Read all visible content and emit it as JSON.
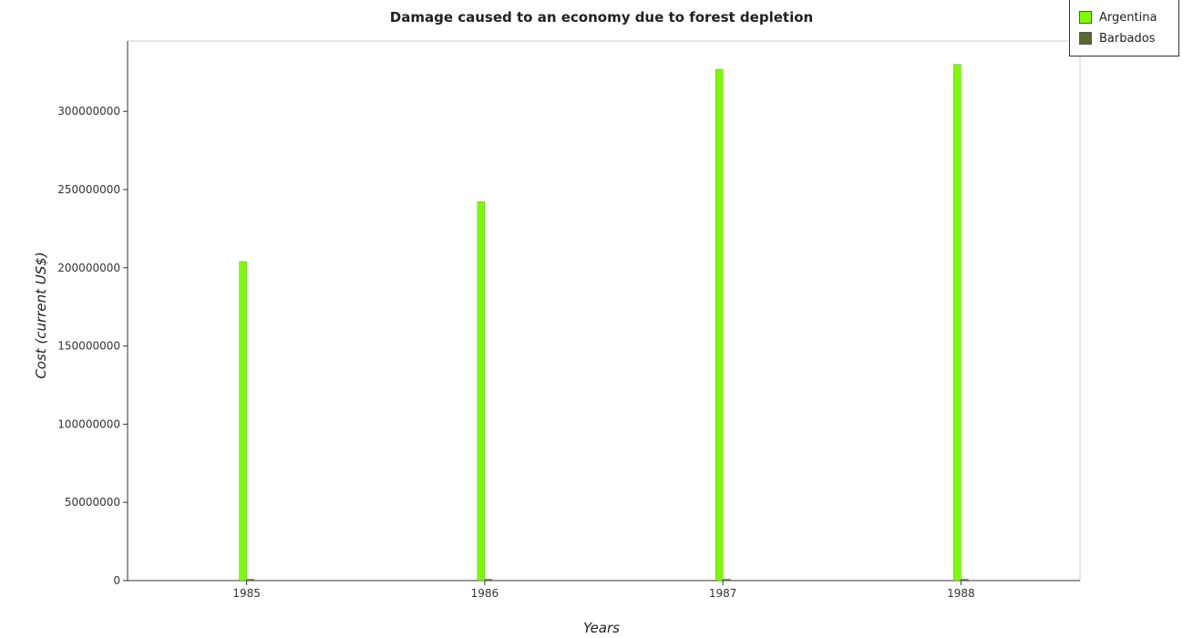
{
  "chart_data": {
    "type": "bar",
    "title": "Damage caused to an economy due to forest depletion",
    "xlabel": "Years",
    "ylabel": "Cost (current US$)",
    "categories": [
      "1985",
      "1986",
      "1987",
      "1988"
    ],
    "ylim": [
      0,
      345000000
    ],
    "yticks": [
      0,
      50000000,
      100000000,
      150000000,
      200000000,
      250000000,
      300000000
    ],
    "ytick_labels": [
      "0",
      "50000000",
      "100000000",
      "150000000",
      "200000000",
      "250000000",
      "300000000"
    ],
    "grid": false,
    "legend_position": "top-right",
    "series": [
      {
        "name": "Argentina",
        "color": "#7cfc00",
        "values": [
          204000000,
          242200000,
          326700000,
          330000000
        ]
      },
      {
        "name": "Barbados",
        "color": "#556b2f",
        "values": [
          150000,
          250000,
          230000,
          240000
        ]
      }
    ]
  }
}
